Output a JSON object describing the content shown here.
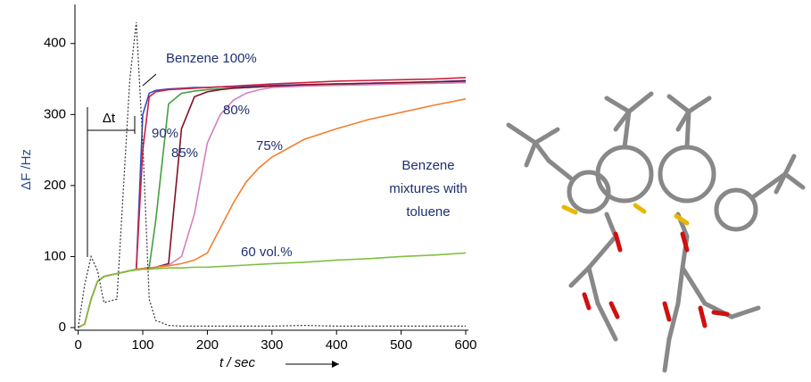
{
  "chart_data": {
    "type": "line",
    "x": [
      0,
      10,
      20,
      30,
      40,
      60,
      80,
      90,
      100,
      110,
      120,
      140,
      160,
      180,
      200,
      220,
      240,
      260,
      280,
      300,
      350,
      400,
      450,
      500,
      550,
      600
    ],
    "series": [
      {
        "name": "Benzene 100%",
        "color": "#3050c0",
        "values": [
          0,
          5,
          40,
          65,
          72,
          76,
          80,
          82,
          300,
          330,
          334,
          336,
          337,
          338,
          338,
          339,
          339,
          340,
          340,
          341,
          342,
          343,
          344,
          345,
          346,
          348
        ]
      },
      {
        "name": "90%",
        "color": "#d02040",
        "values": [
          0,
          5,
          40,
          65,
          72,
          76,
          80,
          82,
          250,
          325,
          332,
          335,
          336,
          337,
          338,
          339,
          340,
          341,
          342,
          343,
          345,
          347,
          348,
          349,
          350,
          352
        ]
      },
      {
        "name": "85%",
        "color": "#40a040",
        "values": [
          0,
          5,
          40,
          65,
          72,
          76,
          80,
          82,
          83,
          85,
          150,
          315,
          330,
          333,
          335,
          336,
          337,
          338,
          339,
          340,
          341,
          342,
          343,
          344,
          344,
          345
        ]
      },
      {
        "color": "#801028",
        "values": [
          0,
          5,
          40,
          65,
          72,
          76,
          80,
          82,
          83,
          84,
          85,
          90,
          280,
          325,
          332,
          335,
          337,
          338,
          339,
          340,
          342,
          343,
          344,
          345,
          346,
          347
        ]
      },
      {
        "name": "80%",
        "color": "#d080c0",
        "values": [
          0,
          5,
          40,
          65,
          72,
          76,
          80,
          82,
          83,
          84,
          85,
          88,
          100,
          160,
          260,
          300,
          320,
          330,
          335,
          338,
          340,
          341,
          342,
          343,
          344,
          345
        ]
      },
      {
        "name": "75%",
        "color": "#f08030",
        "values": [
          0,
          5,
          40,
          65,
          72,
          76,
          80,
          82,
          83,
          84,
          85,
          87,
          90,
          95,
          105,
          140,
          175,
          205,
          225,
          240,
          265,
          280,
          293,
          303,
          313,
          322
        ]
      },
      {
        "name": "60 vol.%",
        "color": "#80c040",
        "values": [
          0,
          5,
          40,
          65,
          72,
          76,
          80,
          81,
          82,
          82,
          83,
          84,
          84,
          85,
          85,
          86,
          87,
          88,
          89,
          90,
          92,
          95,
          97,
          100,
          102,
          105
        ]
      },
      {
        "color": "#333333",
        "dashed": true,
        "values": [
          0,
          60,
          100,
          80,
          35,
          40,
          350,
          430,
          260,
          40,
          10,
          3,
          2,
          2,
          2,
          2,
          2,
          2,
          2,
          2,
          3,
          2,
          2,
          2,
          2,
          2
        ]
      }
    ],
    "xlim": [
      -5,
      600
    ],
    "ylim": [
      0,
      455
    ],
    "xticks": [
      0,
      100,
      200,
      300,
      400,
      500,
      600
    ],
    "yticks": [
      0,
      100,
      200,
      300,
      400
    ],
    "xlabel": "t / sec",
    "ylabel": "ΔF /Hz",
    "annotations": [
      "Δt",
      "Benzene",
      "mixtures with",
      "toluene"
    ]
  }
}
